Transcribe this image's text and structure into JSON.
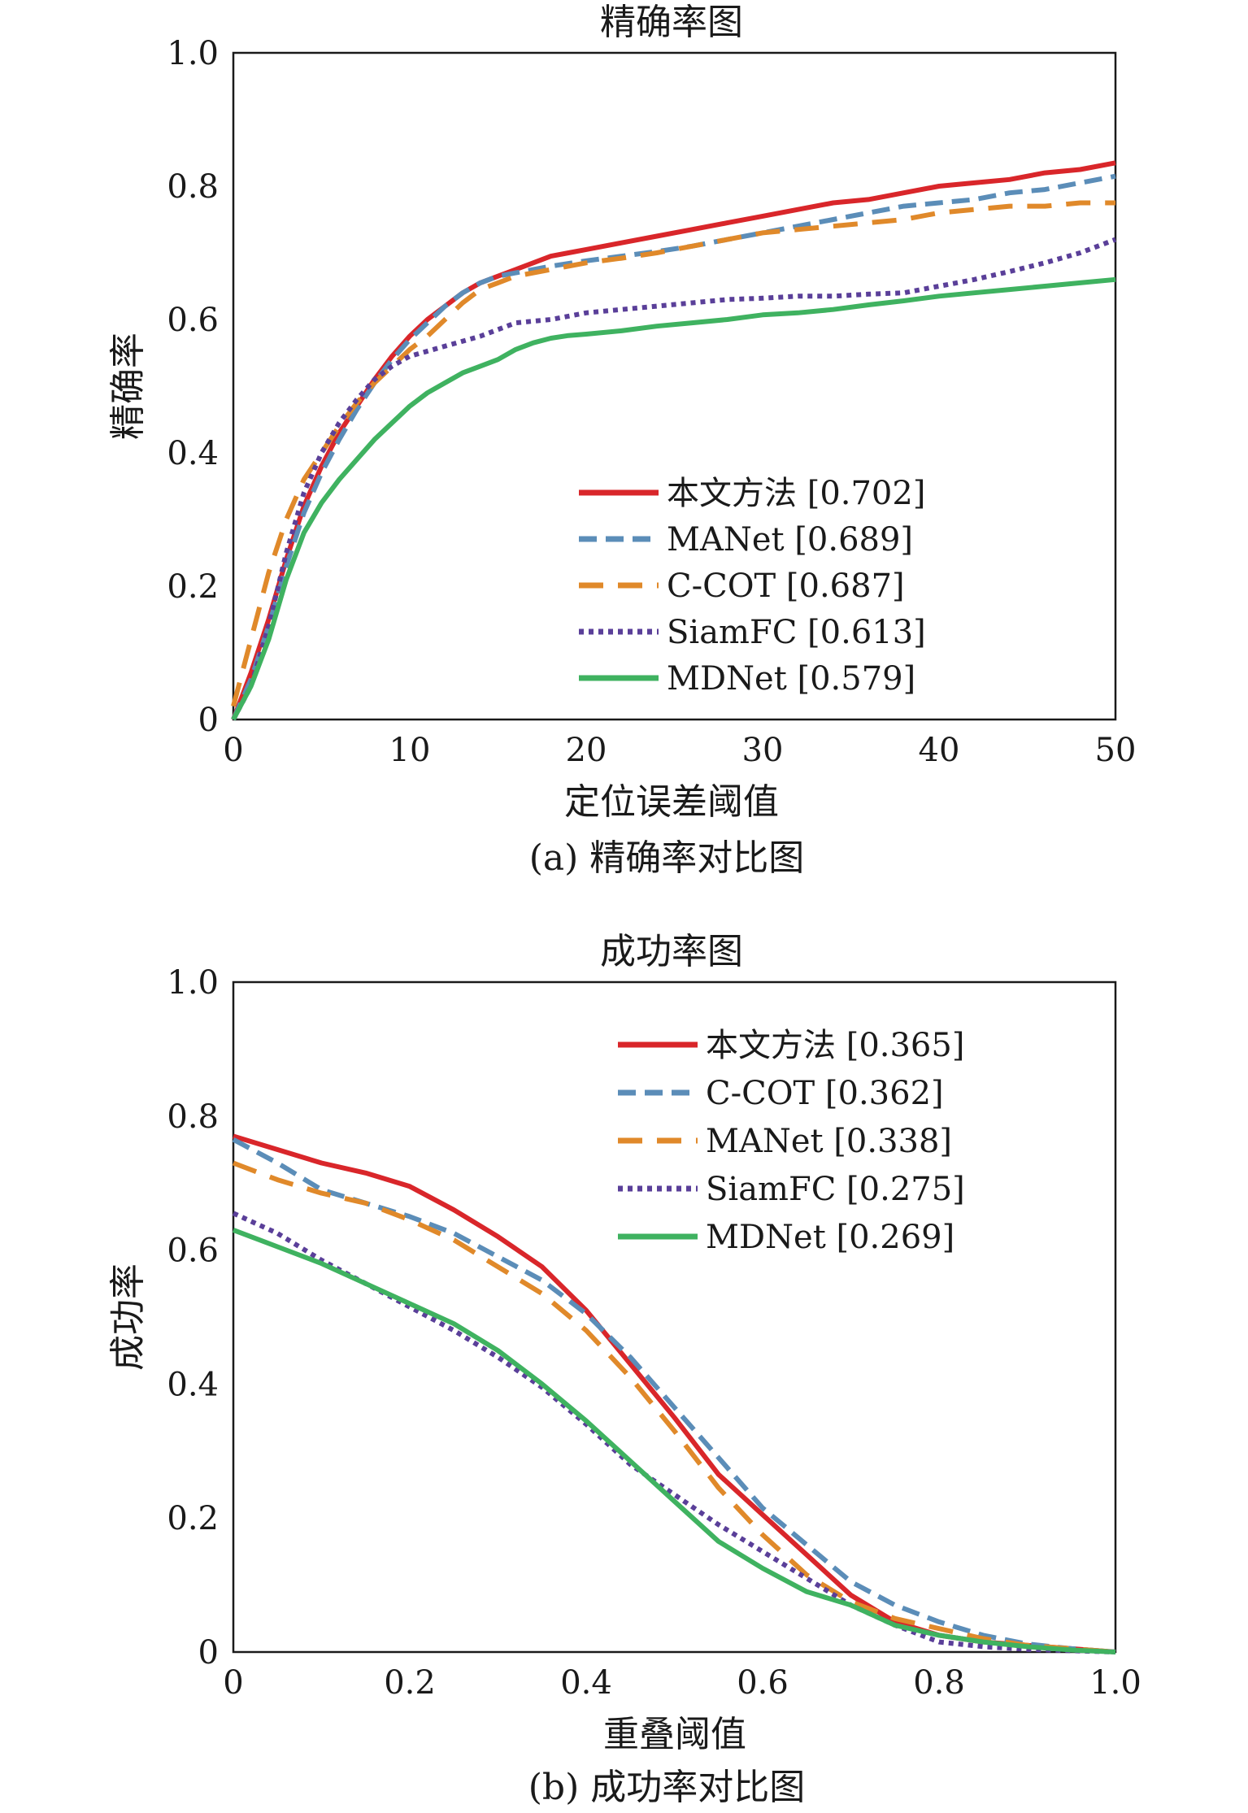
{
  "colors": {
    "red": "#d9262a",
    "blue": "#5b8db8",
    "orange": "#e0892a",
    "purple": "#5a3f99",
    "green": "#3fb260",
    "axis": "#1a1a1a"
  },
  "chart_data": [
    {
      "type": "line",
      "title": "精确率图",
      "xlabel": "定位误差阈值",
      "ylabel": "精确率",
      "caption": "(a) 精确率对比图",
      "xlim": [
        0,
        50
      ],
      "ylim": [
        0,
        1.0
      ],
      "xticks": [
        "0",
        "10",
        "20",
        "30",
        "40",
        "50"
      ],
      "yticks": [
        "0",
        "0.2",
        "0.4",
        "0.6",
        "0.8",
        "1.0"
      ],
      "xtick_values": [
        0,
        10,
        20,
        30,
        40,
        50
      ],
      "ytick_values": [
        0,
        0.2,
        0.4,
        0.6,
        0.8,
        1.0
      ],
      "grid": false,
      "legend_position": "bottom-right",
      "series": [
        {
          "name": "本文方法 [0.702]",
          "color": "red",
          "style": "solid",
          "x": [
            0,
            1,
            2,
            3,
            4,
            5,
            6,
            7,
            8,
            9,
            10,
            11,
            12,
            13,
            14,
            15,
            16,
            17,
            18,
            19,
            20,
            22,
            24,
            26,
            28,
            30,
            32,
            34,
            36,
            37,
            38,
            40,
            42,
            44,
            46,
            48,
            50
          ],
          "y": [
            0.0,
            0.07,
            0.15,
            0.24,
            0.32,
            0.38,
            0.43,
            0.47,
            0.51,
            0.545,
            0.575,
            0.6,
            0.62,
            0.64,
            0.655,
            0.665,
            0.675,
            0.685,
            0.695,
            0.7,
            0.705,
            0.715,
            0.725,
            0.735,
            0.745,
            0.755,
            0.765,
            0.775,
            0.78,
            0.785,
            0.79,
            0.8,
            0.805,
            0.81,
            0.82,
            0.825,
            0.835
          ]
        },
        {
          "name": "MANet [0.689]",
          "color": "blue",
          "style": "dashed",
          "x": [
            0,
            1,
            2,
            3,
            4,
            5,
            6,
            7,
            8,
            9,
            10,
            11,
            12,
            13,
            14,
            15,
            16,
            18,
            20,
            22,
            24,
            26,
            28,
            30,
            32,
            34,
            36,
            38,
            40,
            42,
            44,
            46,
            48,
            50
          ],
          "y": [
            0.0,
            0.06,
            0.14,
            0.23,
            0.31,
            0.37,
            0.42,
            0.465,
            0.505,
            0.54,
            0.57,
            0.595,
            0.62,
            0.64,
            0.655,
            0.665,
            0.67,
            0.68,
            0.688,
            0.695,
            0.702,
            0.71,
            0.72,
            0.73,
            0.74,
            0.75,
            0.76,
            0.77,
            0.775,
            0.78,
            0.79,
            0.795,
            0.805,
            0.815
          ]
        },
        {
          "name": "C-COT [0.687]",
          "color": "orange",
          "style": "longdash",
          "x": [
            0,
            1,
            2,
            3,
            4,
            5,
            6,
            7,
            8,
            9,
            10,
            11,
            12,
            13,
            14,
            15,
            16,
            18,
            20,
            22,
            24,
            26,
            28,
            30,
            32,
            34,
            36,
            38,
            40,
            42,
            44,
            46,
            48,
            50
          ],
          "y": [
            0.02,
            0.12,
            0.22,
            0.3,
            0.36,
            0.4,
            0.44,
            0.475,
            0.505,
            0.53,
            0.555,
            0.575,
            0.6,
            0.625,
            0.645,
            0.655,
            0.665,
            0.675,
            0.685,
            0.692,
            0.7,
            0.71,
            0.72,
            0.73,
            0.735,
            0.74,
            0.745,
            0.75,
            0.76,
            0.765,
            0.77,
            0.77,
            0.775,
            0.775
          ]
        },
        {
          "name": "SiamFC [0.613]",
          "color": "purple",
          "style": "dotted",
          "x": [
            0,
            1,
            2,
            3,
            4,
            5,
            6,
            7,
            8,
            9,
            10,
            12,
            14,
            16,
            18,
            20,
            22,
            24,
            26,
            28,
            30,
            32,
            34,
            36,
            38,
            40,
            42,
            44,
            46,
            48,
            50
          ],
          "y": [
            0.0,
            0.05,
            0.14,
            0.25,
            0.34,
            0.4,
            0.445,
            0.48,
            0.51,
            0.53,
            0.545,
            0.56,
            0.575,
            0.595,
            0.6,
            0.61,
            0.615,
            0.62,
            0.625,
            0.63,
            0.632,
            0.635,
            0.635,
            0.638,
            0.64,
            0.65,
            0.66,
            0.672,
            0.685,
            0.7,
            0.72
          ]
        },
        {
          "name": "MDNet [0.579]",
          "color": "green",
          "style": "solid",
          "x": [
            0,
            1,
            2,
            3,
            4,
            5,
            6,
            7,
            8,
            9,
            10,
            11,
            12,
            13,
            14,
            15,
            16,
            17,
            18,
            19,
            20,
            22,
            24,
            26,
            28,
            30,
            32,
            34,
            36,
            38,
            40,
            42,
            44,
            46,
            48,
            50
          ],
          "y": [
            0.0,
            0.05,
            0.12,
            0.21,
            0.28,
            0.325,
            0.36,
            0.39,
            0.42,
            0.445,
            0.47,
            0.49,
            0.505,
            0.52,
            0.53,
            0.54,
            0.555,
            0.565,
            0.572,
            0.576,
            0.578,
            0.583,
            0.59,
            0.595,
            0.6,
            0.607,
            0.61,
            0.615,
            0.622,
            0.628,
            0.635,
            0.64,
            0.645,
            0.65,
            0.655,
            0.66
          ]
        }
      ]
    },
    {
      "type": "line",
      "title": "成功率图",
      "xlabel": "重叠阈值",
      "ylabel": "成功率",
      "caption": "(b) 成功率对比图",
      "xlim": [
        0,
        1.0
      ],
      "ylim": [
        0,
        1.0
      ],
      "xticks": [
        "0",
        "0.2",
        "0.4",
        "0.6",
        "0.8",
        "1.0"
      ],
      "yticks": [
        "0",
        "0.2",
        "0.4",
        "0.6",
        "0.8",
        "1.0"
      ],
      "xtick_values": [
        0,
        0.2,
        0.4,
        0.6,
        0.8,
        1.0
      ],
      "ytick_values": [
        0,
        0.2,
        0.4,
        0.6,
        0.8,
        1.0
      ],
      "grid": false,
      "legend_position": "top-right",
      "series": [
        {
          "name": "本文方法 [0.365]",
          "color": "red",
          "style": "solid",
          "x": [
            0,
            0.05,
            0.1,
            0.15,
            0.2,
            0.25,
            0.3,
            0.35,
            0.4,
            0.45,
            0.5,
            0.55,
            0.6,
            0.65,
            0.7,
            0.75,
            0.8,
            0.85,
            0.9,
            0.95,
            1.0
          ],
          "y": [
            0.77,
            0.75,
            0.73,
            0.715,
            0.695,
            0.66,
            0.62,
            0.575,
            0.51,
            0.43,
            0.35,
            0.265,
            0.205,
            0.145,
            0.085,
            0.045,
            0.025,
            0.015,
            0.01,
            0.005,
            0.0
          ]
        },
        {
          "name": "C-COT [0.362]",
          "color": "blue",
          "style": "dashed",
          "x": [
            0,
            0.05,
            0.1,
            0.15,
            0.2,
            0.25,
            0.3,
            0.35,
            0.4,
            0.45,
            0.5,
            0.55,
            0.6,
            0.65,
            0.7,
            0.75,
            0.8,
            0.85,
            0.9,
            0.95,
            1.0
          ],
          "y": [
            0.765,
            0.73,
            0.69,
            0.67,
            0.65,
            0.625,
            0.59,
            0.555,
            0.505,
            0.44,
            0.365,
            0.29,
            0.215,
            0.16,
            0.105,
            0.07,
            0.045,
            0.025,
            0.012,
            0.005,
            0.0
          ]
        },
        {
          "name": "MANet [0.338]",
          "color": "orange",
          "style": "longdash",
          "x": [
            0,
            0.05,
            0.1,
            0.15,
            0.2,
            0.25,
            0.3,
            0.35,
            0.4,
            0.45,
            0.5,
            0.55,
            0.6,
            0.65,
            0.7,
            0.75,
            0.8,
            0.85,
            0.9,
            0.95,
            1.0
          ],
          "y": [
            0.73,
            0.705,
            0.685,
            0.67,
            0.645,
            0.615,
            0.575,
            0.535,
            0.48,
            0.41,
            0.33,
            0.245,
            0.175,
            0.115,
            0.075,
            0.05,
            0.035,
            0.02,
            0.01,
            0.005,
            0.0
          ]
        },
        {
          "name": "SiamFC [0.275]",
          "color": "purple",
          "style": "dotted",
          "x": [
            0,
            0.05,
            0.1,
            0.15,
            0.2,
            0.25,
            0.3,
            0.35,
            0.4,
            0.45,
            0.5,
            0.55,
            0.6,
            0.65,
            0.7,
            0.75,
            0.8,
            0.85,
            0.9,
            0.95,
            1.0
          ],
          "y": [
            0.655,
            0.625,
            0.585,
            0.55,
            0.515,
            0.48,
            0.44,
            0.395,
            0.34,
            0.28,
            0.235,
            0.19,
            0.15,
            0.11,
            0.07,
            0.04,
            0.015,
            0.008,
            0.004,
            0.002,
            0.0
          ]
        },
        {
          "name": "MDNet [0.269]",
          "color": "green",
          "style": "solid",
          "x": [
            0,
            0.05,
            0.1,
            0.15,
            0.2,
            0.25,
            0.3,
            0.35,
            0.4,
            0.45,
            0.5,
            0.55,
            0.6,
            0.65,
            0.7,
            0.75,
            0.8,
            0.85,
            0.9,
            0.95,
            1.0
          ],
          "y": [
            0.63,
            0.605,
            0.58,
            0.55,
            0.52,
            0.49,
            0.45,
            0.4,
            0.345,
            0.285,
            0.225,
            0.165,
            0.125,
            0.09,
            0.07,
            0.04,
            0.025,
            0.015,
            0.008,
            0.003,
            0.0
          ]
        }
      ]
    }
  ]
}
